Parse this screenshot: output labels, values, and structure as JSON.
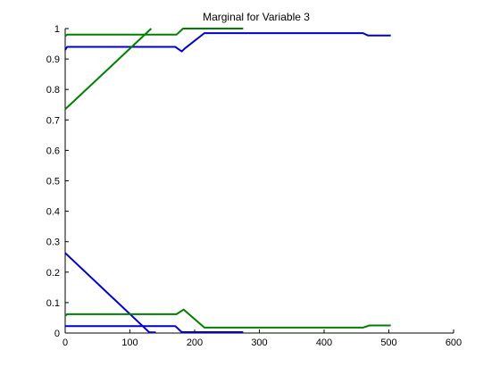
{
  "chart_data": {
    "type": "line",
    "title": "Marginal for Variable 3",
    "xlabel": "",
    "ylabel": "",
    "xlim": [
      0,
      600
    ],
    "ylim": [
      0,
      1
    ],
    "xticks": [
      0,
      100,
      200,
      300,
      400,
      500,
      600
    ],
    "yticks": [
      0,
      0.1,
      0.2,
      0.3,
      0.4,
      0.5,
      0.6,
      0.7,
      0.8,
      0.9,
      1
    ],
    "xtick_labels": [
      "0",
      "100",
      "200",
      "300",
      "400",
      "500",
      "600"
    ],
    "ytick_labels": [
      "0",
      "0.1",
      "0.2",
      "0.3",
      "0.4",
      "0.5",
      "0.6",
      "0.7",
      "0.8",
      "0.9",
      "1"
    ],
    "grid": false,
    "legend": "none",
    "series": [
      {
        "color": "#0000cc",
        "x": [
          0,
          3,
          170,
          180,
          185,
          215,
          460,
          468,
          503
        ],
        "y": [
          0.93,
          0.94,
          0.94,
          0.925,
          0.935,
          0.985,
          0.985,
          0.977,
          0.977
        ]
      },
      {
        "color": "#0000cc",
        "x": [
          0,
          170,
          180,
          275
        ],
        "y": [
          0.023,
          0.023,
          0.003,
          0.003
        ]
      },
      {
        "color": "#0000cc",
        "x": [
          0,
          130,
          140
        ],
        "y": [
          0.263,
          0.002,
          0.002
        ]
      },
      {
        "color": "#007f00",
        "x": [
          0,
          3,
          172,
          182,
          275
        ],
        "y": [
          0.975,
          0.98,
          0.98,
          1.0,
          1.0
        ]
      },
      {
        "color": "#007f00",
        "x": [
          0,
          133
        ],
        "y": [
          0.735,
          1.0
        ]
      },
      {
        "color": "#007f00",
        "x": [
          0,
          3,
          172,
          183,
          215,
          460,
          470,
          503
        ],
        "y": [
          0.057,
          0.062,
          0.062,
          0.077,
          0.018,
          0.018,
          0.025,
          0.025
        ]
      }
    ]
  }
}
